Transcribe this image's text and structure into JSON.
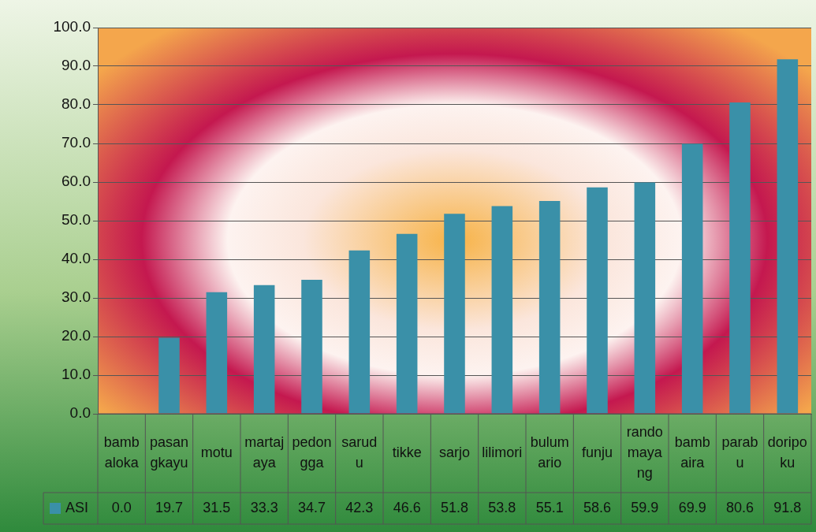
{
  "chart_data": {
    "type": "bar",
    "categories": [
      "bambaloka",
      "pasangkayu",
      "motu",
      "martajaya",
      "pedongga",
      "sarudu",
      "tikke",
      "sarjo",
      "lilimori",
      "bulumario",
      "funju",
      "randomayang",
      "bambaira",
      "parabu",
      "doripoku"
    ],
    "series": [
      {
        "name": "ASI",
        "color": "#3a90a8",
        "values": [
          0.0,
          19.7,
          31.5,
          33.3,
          34.7,
          42.3,
          46.6,
          51.8,
          53.8,
          55.1,
          58.6,
          59.9,
          69.9,
          80.6,
          91.8
        ],
        "value_labels": [
          "0.0",
          "19.7",
          "31.5",
          "33.3",
          "34.7",
          "42.3",
          "46.6",
          "51.8",
          "53.8",
          "55.1",
          "58.6",
          "59.9",
          "69.9",
          "80.6",
          "91.8"
        ]
      }
    ],
    "ylim": [
      0,
      100
    ],
    "yticks": [
      {
        "value": 0,
        "label": "0.0"
      },
      {
        "value": 10,
        "label": "10.0"
      },
      {
        "value": 20,
        "label": "20.0"
      },
      {
        "value": 30,
        "label": "30.0"
      },
      {
        "value": 40,
        "label": "40.0"
      },
      {
        "value": 50,
        "label": "50.0"
      },
      {
        "value": 60,
        "label": "60.0"
      },
      {
        "value": 70,
        "label": "70.0"
      },
      {
        "value": 80,
        "label": "80.0"
      },
      {
        "value": 90,
        "label": "90.0"
      },
      {
        "value": 100,
        "label": "100.0"
      }
    ],
    "grid": "y",
    "legend": "bottom"
  }
}
